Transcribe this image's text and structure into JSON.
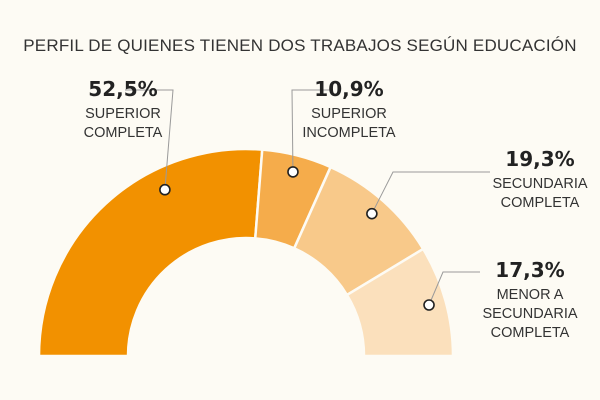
{
  "chart_data": {
    "type": "pie",
    "title": "PERFIL DE QUIENES TIENEN DOS TRABAJOS SEGÚN EDUCACIÓN",
    "slices": [
      {
        "value": 52.5,
        "value_label": "52,5%",
        "label_lines": [
          "SUPERIOR",
          "COMPLETA"
        ],
        "color": "#f29100"
      },
      {
        "value": 10.9,
        "value_label": "10,9%",
        "label_lines": [
          "SUPERIOR",
          "INCOMPLETA"
        ],
        "color": "#f5ac4b"
      },
      {
        "value": 19.3,
        "value_label": "19,3%",
        "label_lines": [
          "SECUNDARIA",
          "COMPLETA"
        ],
        "color": "#f8c98a"
      },
      {
        "value": 17.3,
        "value_label": "17,3%",
        "label_lines": [
          "MENOR A",
          "SECUNDARIA",
          "COMPLETA"
        ],
        "color": "#fbe0bc"
      }
    ]
  }
}
